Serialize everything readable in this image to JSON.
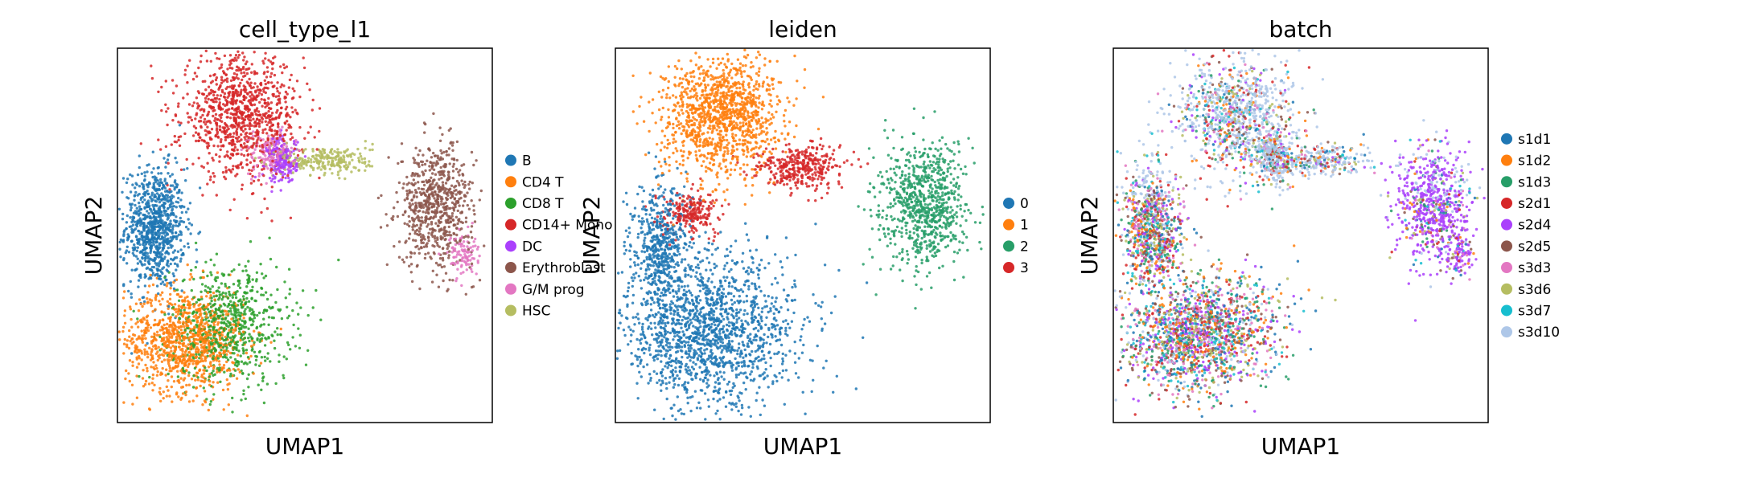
{
  "chart_data": [
    {
      "type": "scatter",
      "title": "cell_type_l1",
      "xlabel": "UMAP1",
      "ylabel": "UMAP2",
      "xticks": "none",
      "yticks": "none",
      "grid": false,
      "legend_position": "right",
      "xlim": [
        0,
        100
      ],
      "ylim": [
        0,
        100
      ],
      "series": [
        {
          "name": "B",
          "color": "#1f77b4",
          "clusters": [
            {
              "x": 10,
              "y": 52,
              "sx": 4,
              "sy": 8,
              "n": 900
            }
          ]
        },
        {
          "name": "CD4 T",
          "color": "#ff7f0e",
          "clusters": [
            {
              "x": 18,
              "y": 22,
              "sx": 8,
              "sy": 7,
              "n": 1000
            }
          ]
        },
        {
          "name": "CD8 T",
          "color": "#2ca02c",
          "clusters": [
            {
              "x": 30,
              "y": 26,
              "sx": 8,
              "sy": 8,
              "n": 700
            }
          ]
        },
        {
          "name": "CD14+ Mono",
          "color": "#d62728",
          "clusters": [
            {
              "x": 33,
              "y": 82,
              "sx": 8,
              "sy": 8,
              "n": 1000
            }
          ]
        },
        {
          "name": "DC",
          "color": "#aa40fc",
          "clusters": [
            {
              "x": 44,
              "y": 70,
              "sx": 2,
              "sy": 3,
              "n": 200
            }
          ]
        },
        {
          "name": "Erythroblast",
          "color": "#8c564b",
          "clusters": [
            {
              "x": 85,
              "y": 58,
              "sx": 5,
              "sy": 8,
              "n": 700
            }
          ]
        },
        {
          "name": "G/M prog",
          "color": "#e377c2",
          "clusters": [
            {
              "x": 41,
              "y": 72,
              "sx": 3,
              "sy": 3,
              "n": 150
            },
            {
              "x": 92,
              "y": 45,
              "sx": 2,
              "sy": 3,
              "n": 100
            }
          ]
        },
        {
          "name": "HSC",
          "color": "#b5bd61",
          "clusters": [
            {
              "x": 56,
              "y": 70,
              "sx": 6,
              "sy": 2,
              "n": 250
            }
          ]
        }
      ],
      "extra_colors": [
        "#ff9896"
      ]
    },
    {
      "type": "scatter",
      "title": "leiden",
      "xlabel": "UMAP1",
      "ylabel": "UMAP2",
      "xticks": "none",
      "yticks": "none",
      "grid": false,
      "legend_position": "right",
      "xlim": [
        0,
        100
      ],
      "ylim": [
        0,
        100
      ],
      "series": [
        {
          "name": "0",
          "color": "#1f77b4",
          "clusters": [
            {
              "x": 25,
              "y": 25,
              "sx": 12,
              "sy": 10,
              "n": 1600
            },
            {
              "x": 12,
              "y": 48,
              "sx": 4,
              "sy": 8,
              "n": 500
            }
          ]
        },
        {
          "name": "1",
          "color": "#ff7f0e",
          "clusters": [
            {
              "x": 28,
              "y": 82,
              "sx": 8,
              "sy": 8,
              "n": 1200
            }
          ]
        },
        {
          "name": "2",
          "color": "#279e68",
          "clusters": [
            {
              "x": 82,
              "y": 58,
              "sx": 6,
              "sy": 8,
              "n": 800
            }
          ]
        },
        {
          "name": "3",
          "color": "#d62728",
          "clusters": [
            {
              "x": 49,
              "y": 68,
              "sx": 6,
              "sy": 3,
              "n": 350
            },
            {
              "x": 20,
              "y": 56,
              "sx": 4,
              "sy": 3,
              "n": 220
            }
          ]
        }
      ]
    },
    {
      "type": "scatter",
      "title": "batch",
      "xlabel": "UMAP1",
      "ylabel": "UMAP2",
      "xticks": "none",
      "yticks": "none",
      "grid": false,
      "legend_position": "right",
      "xlim": [
        0,
        100
      ],
      "ylim": [
        0,
        100
      ],
      "series": [
        {
          "name": "s1d1",
          "color": "#1f77b4"
        },
        {
          "name": "s1d2",
          "color": "#ff7f0e"
        },
        {
          "name": "s1d3",
          "color": "#279e68"
        },
        {
          "name": "s2d1",
          "color": "#d62728"
        },
        {
          "name": "s2d4",
          "color": "#aa40fc"
        },
        {
          "name": "s2d5",
          "color": "#8c564b"
        },
        {
          "name": "s3d3",
          "color": "#e377c2"
        },
        {
          "name": "s3d6",
          "color": "#b5bd61"
        },
        {
          "name": "s3d7",
          "color": "#17becf"
        },
        {
          "name": "s3d10",
          "color": "#aec7e8"
        }
      ]
    }
  ]
}
